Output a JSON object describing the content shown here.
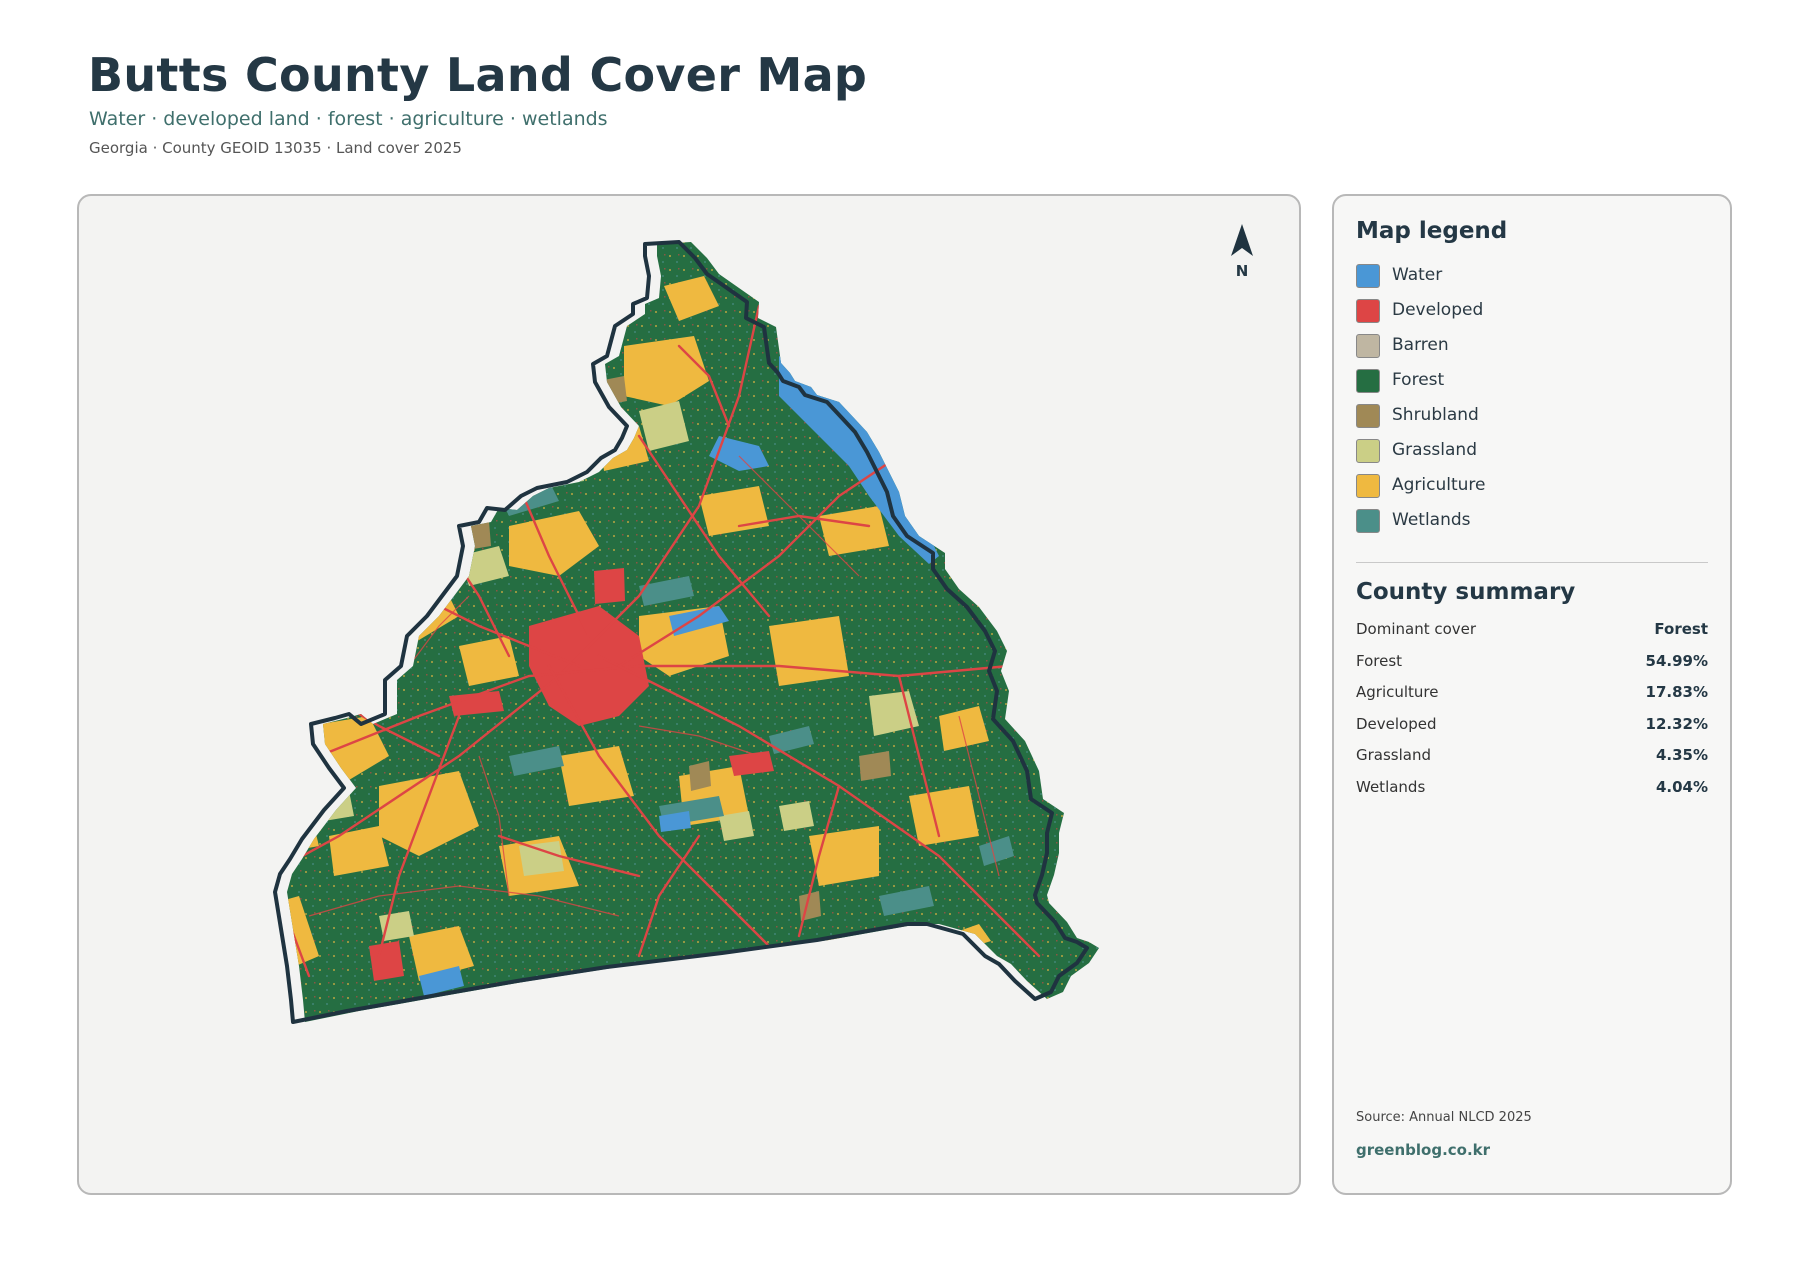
{
  "header": {
    "title": "Butts County Land Cover Map",
    "subtitle": "Water · developed land · forest · agriculture · wetlands",
    "meta": "Georgia · County GEOID 13035 · Land cover 2025"
  },
  "map": {
    "north_label": "N"
  },
  "legend": {
    "title": "Map legend",
    "items": [
      {
        "label": "Water",
        "color": "#4a97d6"
      },
      {
        "label": "Developed",
        "color": "#dd4545"
      },
      {
        "label": "Barren",
        "color": "#bfb6a2"
      },
      {
        "label": "Forest",
        "color": "#256e42"
      },
      {
        "label": "Shrubland",
        "color": "#a08956"
      },
      {
        "label": "Grassland",
        "color": "#cbcf86"
      },
      {
        "label": "Agriculture",
        "color": "#efb940"
      },
      {
        "label": "Wetlands",
        "color": "#4b8f89"
      }
    ]
  },
  "summary": {
    "title": "County summary",
    "rows": [
      {
        "label": "Dominant cover",
        "value": "Forest"
      },
      {
        "label": "Forest",
        "value": "54.99%"
      },
      {
        "label": "Agriculture",
        "value": "17.83%"
      },
      {
        "label": "Developed",
        "value": "12.32%"
      },
      {
        "label": "Grassland",
        "value": "4.35%"
      },
      {
        "label": "Wetlands",
        "value": "4.04%"
      }
    ]
  },
  "footer": {
    "source": "Source: Annual NLCD 2025",
    "site": "greenblog.co.kr"
  }
}
